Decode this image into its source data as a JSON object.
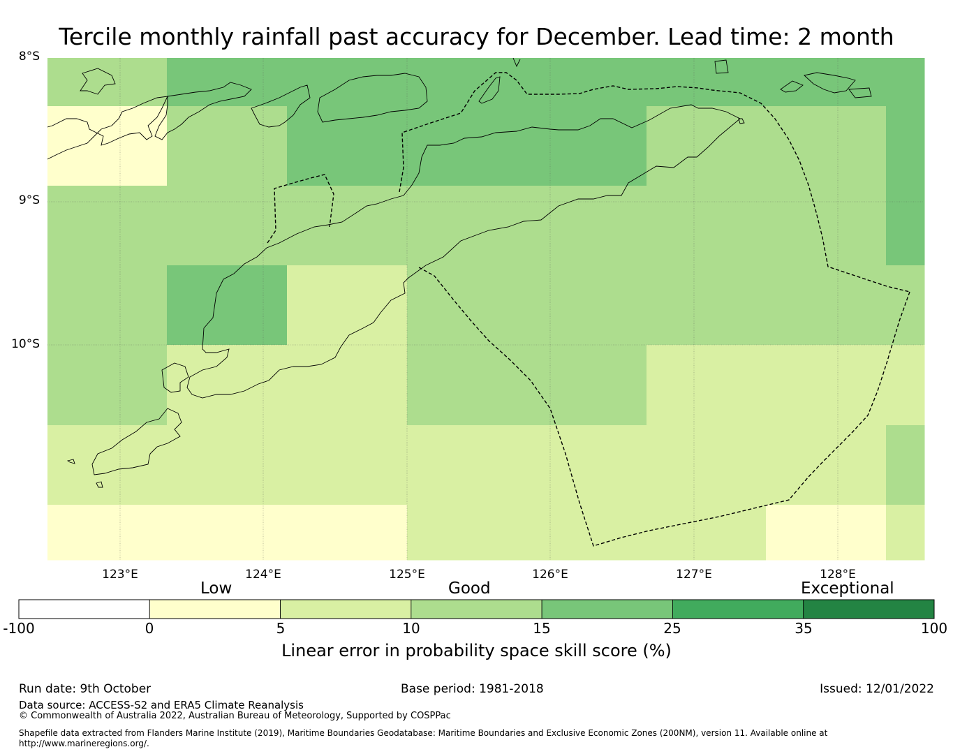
{
  "title": "Tercile monthly rainfall past accuracy for December. Lead time: 2 month",
  "map": {
    "lat_labels": [
      "8°S",
      "9°S",
      "10°S"
    ],
    "lon_labels": [
      "123°E",
      "124°E",
      "125°E",
      "126°E",
      "127°E",
      "128°E"
    ],
    "category_colors": {
      "0-5": "#ffffcc",
      "5-10": "#d9f0a3",
      "10-15": "#addd8e",
      "15-25": "#78c679",
      "25-35": "#41ab5d",
      "35-100": "#238443"
    },
    "grid_rows": [
      [
        "10-15",
        "15-25",
        "15-25",
        "15-25",
        "15-25",
        "15-25",
        "15-25",
        "15-25"
      ],
      [
        "0-5",
        "10-15",
        "15-25",
        "15-25",
        "15-25",
        "10-15",
        "10-15",
        "15-25"
      ],
      [
        "10-15",
        "10-15",
        "10-15",
        "10-15",
        "10-15",
        "10-15",
        "10-15",
        "15-25"
      ],
      [
        "10-15",
        "15-25",
        "5-10",
        "10-15",
        "10-15",
        "10-15",
        "10-15",
        "10-15"
      ],
      [
        "10-15",
        "5-10",
        "5-10",
        "10-15",
        "10-15",
        "5-10",
        "5-10",
        "5-10"
      ],
      [
        "5-10",
        "5-10",
        "5-10",
        "5-10",
        "5-10",
        "5-10",
        "5-10",
        "10-15"
      ],
      [
        "0-5",
        "0-5",
        "0-5",
        "5-10",
        "5-10",
        "5-10",
        "0-5",
        "5-10"
      ]
    ]
  },
  "colorbar": {
    "category_labels": [
      "Low",
      "Good",
      "Exceptional"
    ],
    "ticks": [
      "-100",
      "0",
      "5",
      "10",
      "15",
      "25",
      "35",
      "100"
    ],
    "colors": [
      "#ffffff",
      "#ffffcc",
      "#d9f0a3",
      "#addd8e",
      "#78c679",
      "#41ab5d",
      "#238443"
    ],
    "title": "Linear error in probability space skill score (%)"
  },
  "footer": {
    "run_date": "Run date: 9th October",
    "base_period": "Base period: 1981-2018",
    "issued": "Issued: 12/01/2022",
    "data_source": "Data source: ACCESS-S2 and ERA5 Climate Reanalysis",
    "copyright": "© Commonwealth of Australia 2022, Australian Bureau of Meteorology, Supported by COSPPac",
    "shapefile_line1": "Shapefile data extracted from Flanders Marine Institute (2019), Maritime Boundaries Geodatabase: Maritime Boundaries and Exclusive Economic Zones (200NM), version 11. Available online at",
    "shapefile_line2": "http://www.marineregions.org/."
  }
}
